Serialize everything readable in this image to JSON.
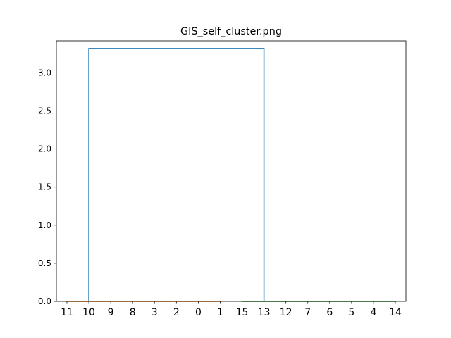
{
  "chart_data": {
    "type": "dendrogram",
    "title": "GIS_self_cluster.png",
    "xlabel": "",
    "ylabel": "",
    "ylim": [
      0,
      3.42
    ],
    "yticks": [
      0.0,
      0.5,
      1.0,
      1.5,
      2.0,
      2.5,
      3.0
    ],
    "ytick_labels": [
      "0.0",
      "0.5",
      "1.0",
      "1.5",
      "2.0",
      "2.5",
      "3.0"
    ],
    "leaf_labels": [
      "11",
      "10",
      "9",
      "8",
      "3",
      "2",
      "0",
      "1",
      "15",
      "13",
      "12",
      "7",
      "6",
      "5",
      "4",
      "14"
    ],
    "grid": false,
    "clusters": [
      {
        "color": "#ff7f0e",
        "leaf_start": 0,
        "leaf_end": 7,
        "height": 0.0
      },
      {
        "color": "#2ca02c",
        "leaf_start": 8,
        "leaf_end": 15,
        "height": 0.0
      }
    ],
    "root_link": {
      "color": "#1f77b4",
      "left_x_leaf": 1,
      "right_x_leaf": 9,
      "height": 3.32
    }
  }
}
